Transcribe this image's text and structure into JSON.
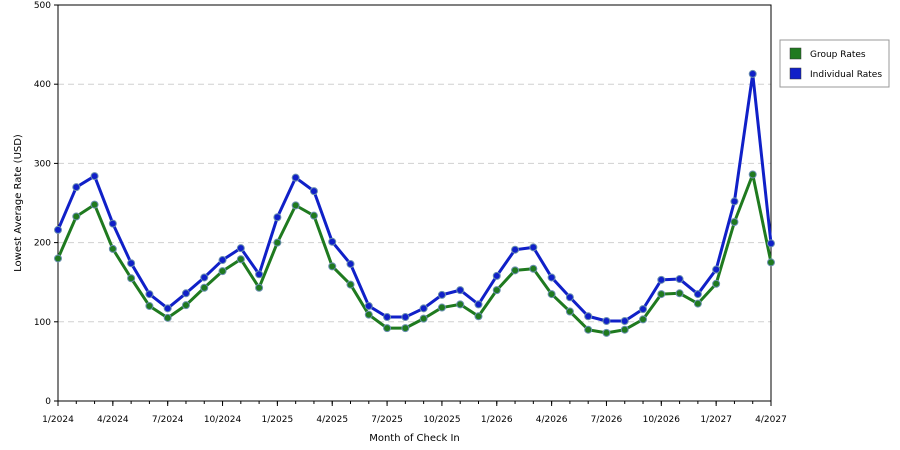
{
  "chart_data": {
    "type": "line",
    "xlabel": "Month of Check In",
    "ylabel": "Lowest Average Rate (USD)",
    "ylim": [
      0,
      500
    ],
    "yticks": [
      0,
      100,
      200,
      300,
      400,
      500
    ],
    "x_tick_labels": [
      "1/2024",
      "4/2024",
      "7/2024",
      "10/2024",
      "1/2025",
      "4/2025",
      "7/2025",
      "10/2025",
      "1/2026",
      "4/2026",
      "7/2026",
      "10/2026",
      "1/2027",
      "4/2027"
    ],
    "x": [
      "1/2024",
      "2/2024",
      "3/2024",
      "4/2024",
      "5/2024",
      "6/2024",
      "7/2024",
      "8/2024",
      "9/2024",
      "10/2024",
      "11/2024",
      "12/2024",
      "1/2025",
      "2/2025",
      "3/2025",
      "4/2025",
      "5/2025",
      "6/2025",
      "7/2025",
      "8/2025",
      "9/2025",
      "10/2025",
      "11/2025",
      "12/2025",
      "1/2026",
      "2/2026",
      "3/2026",
      "4/2026",
      "5/2026",
      "6/2026",
      "7/2026",
      "8/2026",
      "9/2026",
      "10/2026",
      "11/2026",
      "12/2026",
      "1/2027",
      "2/2027",
      "3/2027",
      "4/2027"
    ],
    "grid": "horizontal dashed",
    "legend_position": "right",
    "series": [
      {
        "name": "Group Rates",
        "color": "#1f7a1f",
        "values": [
          180,
          233,
          248,
          192,
          155,
          120,
          105,
          121,
          143,
          164,
          179,
          143,
          200,
          247,
          234,
          170,
          147,
          109,
          92,
          92,
          104,
          118,
          122,
          107,
          140,
          165,
          167,
          135,
          113,
          90,
          86,
          90,
          103,
          135,
          136,
          123,
          148,
          226,
          286,
          175
        ]
      },
      {
        "name": "Individual Rates",
        "color": "#1020c8",
        "values": [
          216,
          270,
          284,
          224,
          174,
          135,
          117,
          136,
          156,
          178,
          193,
          160,
          232,
          282,
          265,
          201,
          173,
          120,
          106,
          106,
          117,
          134,
          140,
          122,
          158,
          191,
          194,
          156,
          131,
          107,
          101,
          101,
          116,
          153,
          154,
          135,
          166,
          252,
          413,
          199
        ]
      }
    ]
  }
}
